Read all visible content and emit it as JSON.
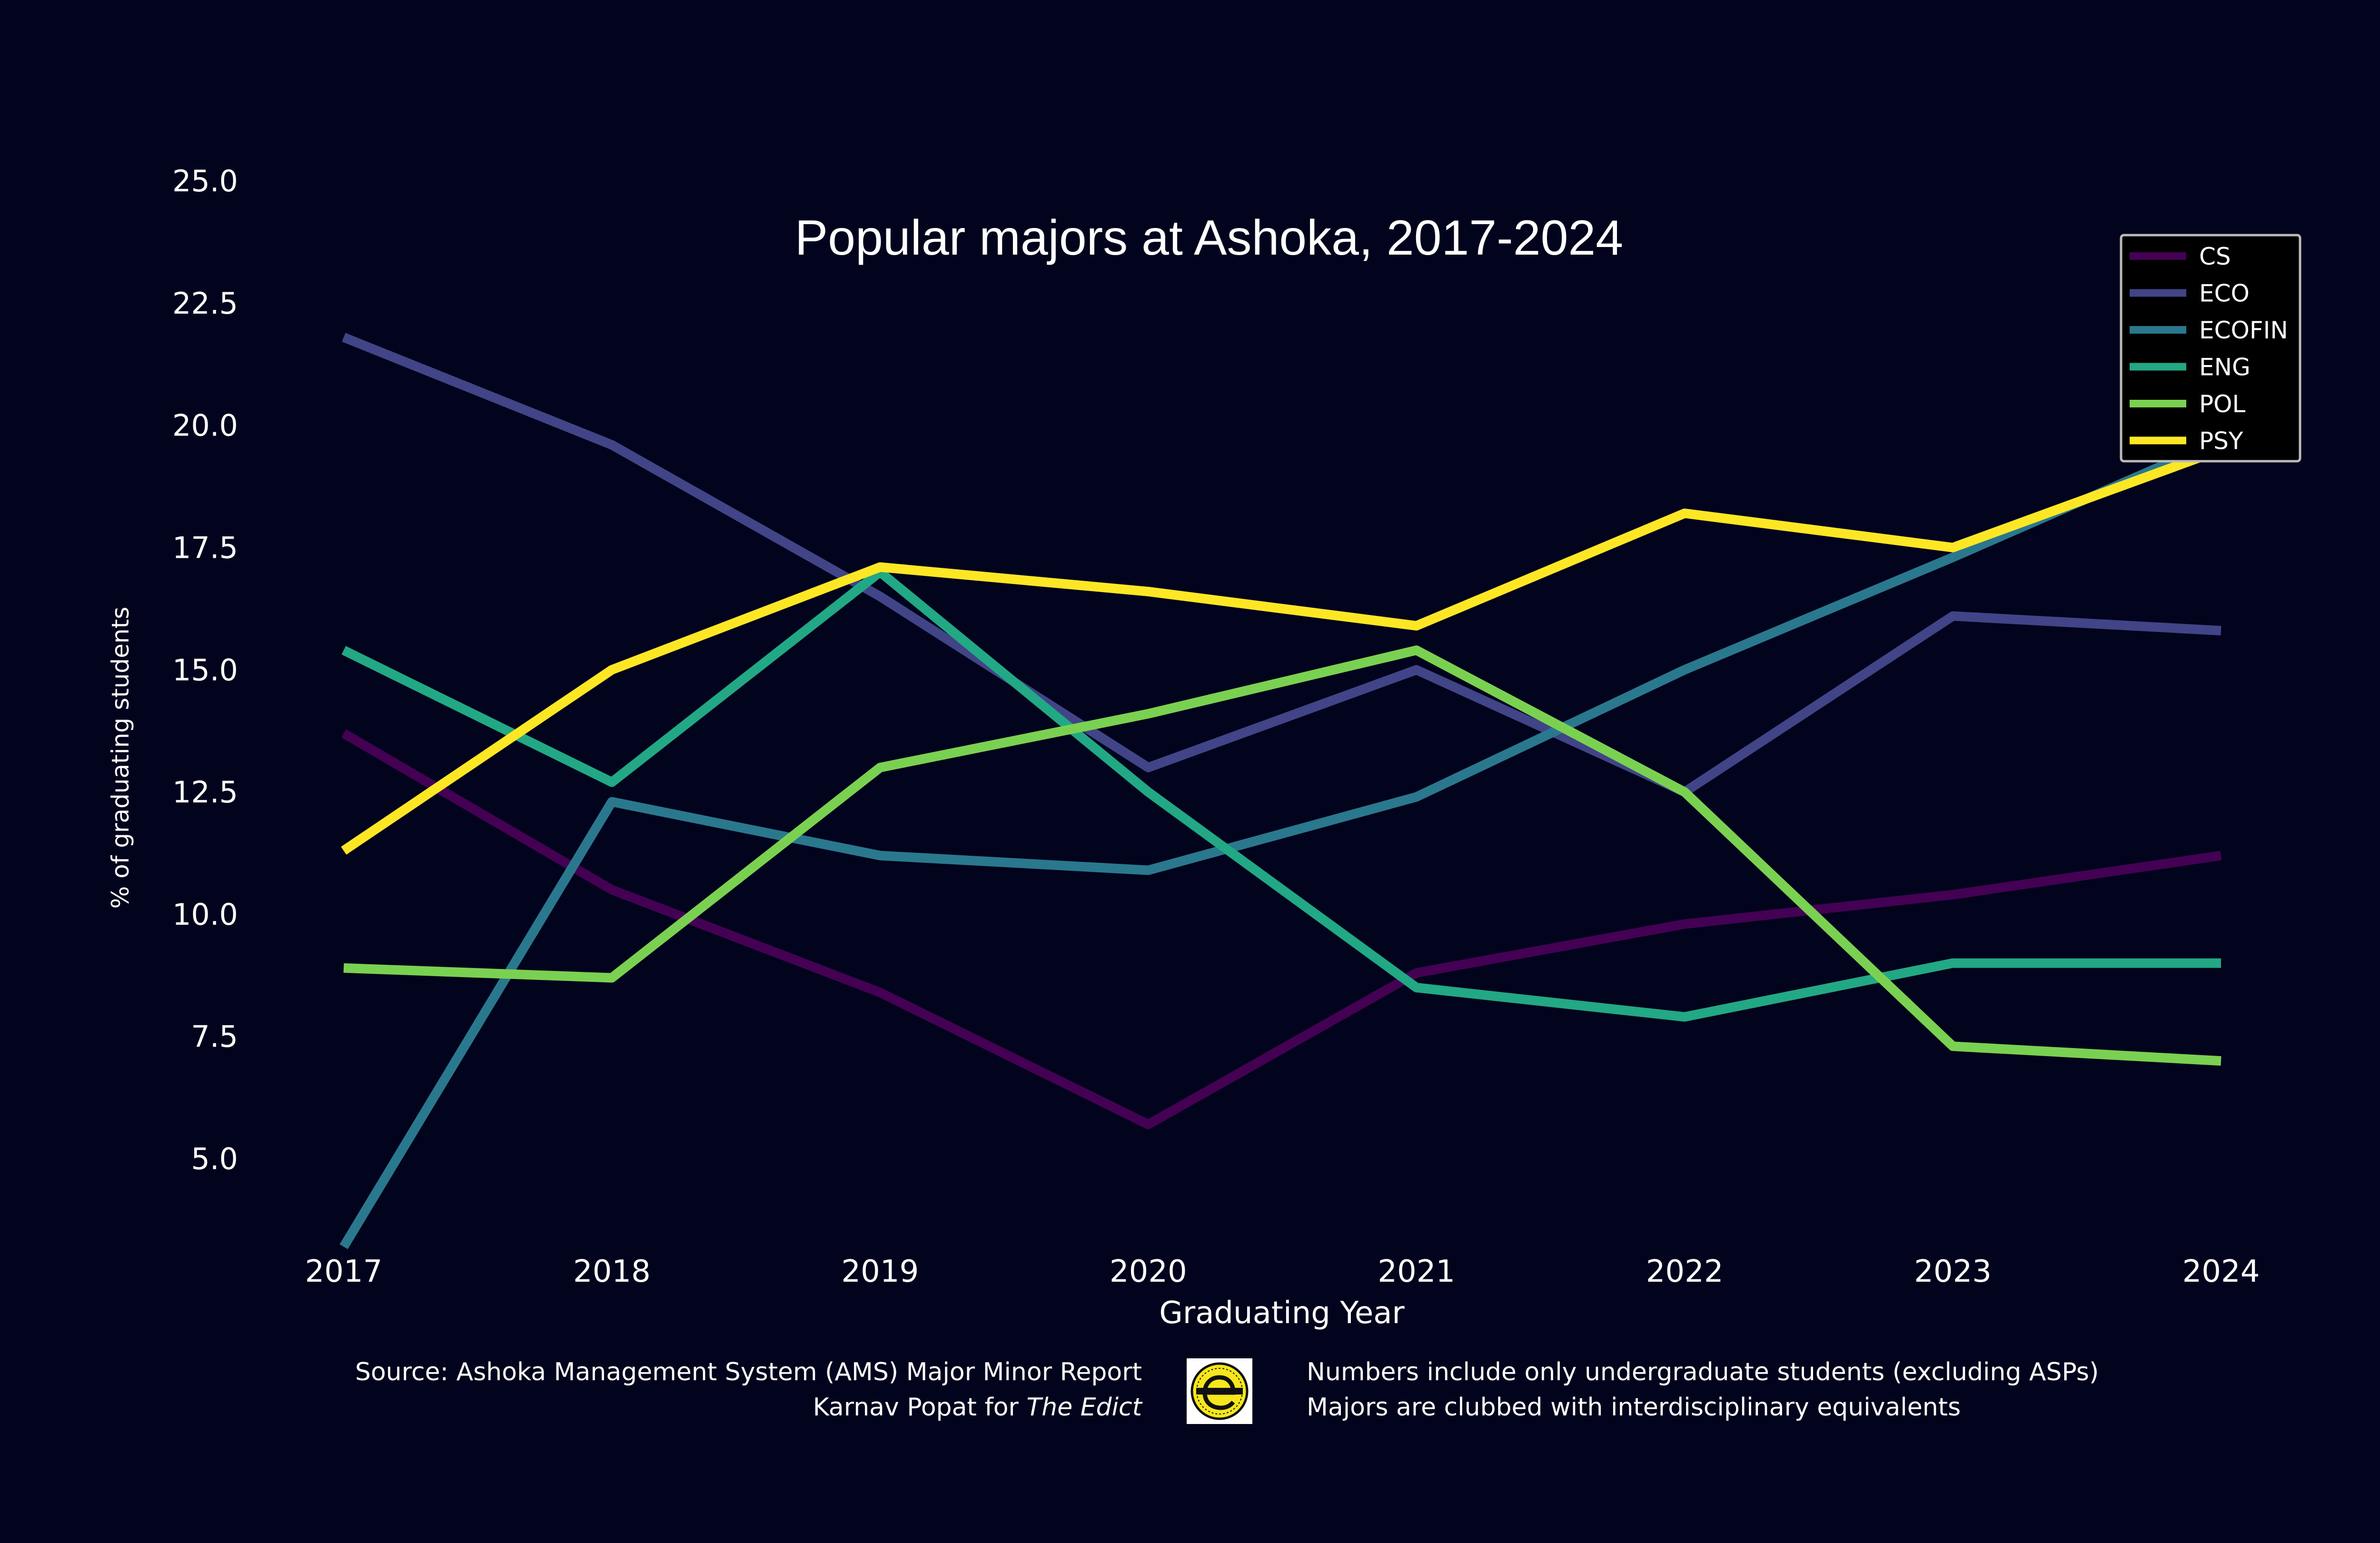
{
  "chart_data": {
    "type": "line",
    "title": "Popular majors at Ashoka, 2017-2024",
    "xlabel": "Graduating Year",
    "ylabel": "% of graduating students",
    "x": [
      2017,
      2018,
      2019,
      2020,
      2021,
      2022,
      2023,
      2024
    ],
    "x_tick_labels": [
      "2017",
      "2018",
      "2019",
      "2020",
      "2021",
      "2022",
      "2023",
      "2024"
    ],
    "y_ticks": [
      5.0,
      7.5,
      10.0,
      12.5,
      15.0,
      17.5,
      20.0,
      22.5,
      25.0
    ],
    "y_tick_labels": [
      "5.0",
      "7.5",
      "10.0",
      "12.5",
      "15.0",
      "17.5",
      "20.0",
      "22.5",
      "25.0"
    ],
    "xlim": [
      2017,
      2024
    ],
    "ylim": [
      3.0,
      25.0
    ],
    "grid": false,
    "legend_position": "top-right",
    "series": [
      {
        "name": "CS",
        "color": "#440154",
        "values": [
          13.7,
          10.5,
          8.4,
          5.7,
          8.8,
          9.8,
          10.4,
          11.2
        ]
      },
      {
        "name": "ECO",
        "color": "#414487",
        "values": [
          21.8,
          19.6,
          16.5,
          13.0,
          15.0,
          12.5,
          16.1,
          15.8
        ]
      },
      {
        "name": "ECOFIN",
        "color": "#2a788e",
        "values": [
          3.2,
          12.3,
          11.2,
          10.9,
          12.4,
          15.0,
          17.3,
          19.7
        ]
      },
      {
        "name": "ENG",
        "color": "#22a884",
        "values": [
          15.4,
          12.7,
          17.0,
          12.5,
          8.5,
          7.9,
          9.0,
          9.0
        ]
      },
      {
        "name": "POL",
        "color": "#7ad151",
        "values": [
          8.9,
          8.7,
          13.0,
          14.1,
          15.4,
          12.5,
          7.3,
          7.0
        ]
      },
      {
        "name": "PSY",
        "color": "#fde725",
        "values": [
          11.3,
          15.0,
          17.1,
          16.6,
          15.9,
          18.2,
          17.5,
          19.5
        ]
      }
    ]
  },
  "footer": {
    "source_line": "Source: Ashoka Management System (AMS) Major Minor Report",
    "credit_prefix": "Karnav Popat for ",
    "credit_publication": "The Edict",
    "note_1": "Numbers include only undergraduate students (excluding ASPs)",
    "note_2": "Majors are clubbed with interdisciplinary equivalents"
  },
  "colors": {
    "background": "#02031c",
    "text": "#ffffff",
    "legend_background": "#000000",
    "legend_border": "#bbbbbb",
    "logo_yellow": "#f6e61c"
  },
  "logo": {
    "icon": "the-edict-logo-icon"
  }
}
